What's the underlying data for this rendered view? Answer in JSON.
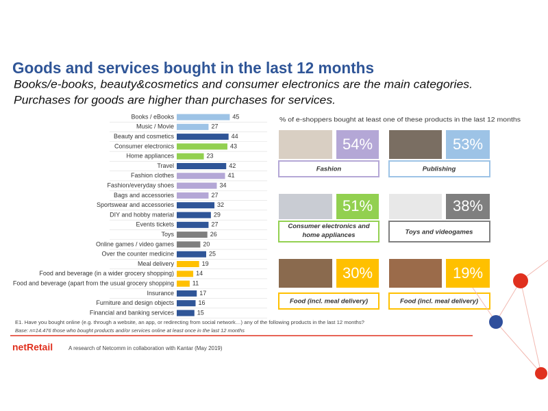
{
  "header": {
    "title": "Goods and services bought in the last 12 months",
    "subtitle_lines": [
      "Books/e-books, beauty&cosmetics and consumer electronics are the main categories.",
      "Purchases for goods are higher than purchases for services."
    ]
  },
  "chart_data": {
    "type": "bar",
    "orientation": "horizontal",
    "categories": [
      "Books / eBooks",
      "Music / Movie",
      "Beauty and cosmetics",
      "Consumer electronics",
      "Home appliances",
      "Travel",
      "Fashion clothes",
      "Fashion/everyday shoes",
      "Bags and accessories",
      "Sportswear and accessories",
      "DIY and hobby material",
      "Events tickets",
      "Toys",
      "Online games / video games",
      "Over the counter medicine",
      "Meal delivery",
      "Food and beverage (in a wider grocery shopping)",
      "Food and beverage (apart from the usual grocery shopping",
      "Insurance",
      "Furniture and design objects",
      "Financial and banking services"
    ],
    "values": [
      45,
      27,
      44,
      43,
      23,
      42,
      41,
      34,
      27,
      32,
      29,
      27,
      26,
      20,
      25,
      19,
      14,
      11,
      17,
      16,
      15
    ],
    "colors": [
      "#9dc3e6",
      "#9dc3e6",
      "#2f5597",
      "#92d050",
      "#92d050",
      "#2f5597",
      "#b4a7d6",
      "#b4a7d6",
      "#b4a7d6",
      "#2f5597",
      "#2f5597",
      "#2f5597",
      "#7f7f7f",
      "#7f7f7f",
      "#2f5597",
      "#ffc000",
      "#ffc000",
      "#ffc000",
      "#2f5597",
      "#2f5597",
      "#2f5597"
    ]
  },
  "panel": {
    "heading": "% of e-shoppers bought at least one of these products in the last 12 months",
    "tiles": [
      {
        "percent": "54%",
        "label": "Fashion"
      },
      {
        "percent": "53%",
        "label": "Publishing"
      },
      {
        "percent": "51%",
        "label": "Consumer electronics and home appliances"
      },
      {
        "percent": "38%",
        "label": "Toys and videogames"
      },
      {
        "percent": "30%",
        "label": "Food (incl. meal delivery)"
      },
      {
        "percent": "19%",
        "label": "Food (incl. meal delivery)"
      }
    ]
  },
  "footer": {
    "question": "E1. Have you bought online (e.g. through a website, an app, or redirecting from social network…) any of the following products in the last 12 months?",
    "base": "Base: n=14.476 those who bought products and/or services online at least once in the last 12 months",
    "logo": "netRetail",
    "credit": "A research of Netcomm in collaboration with Kantar (May 2019)"
  }
}
